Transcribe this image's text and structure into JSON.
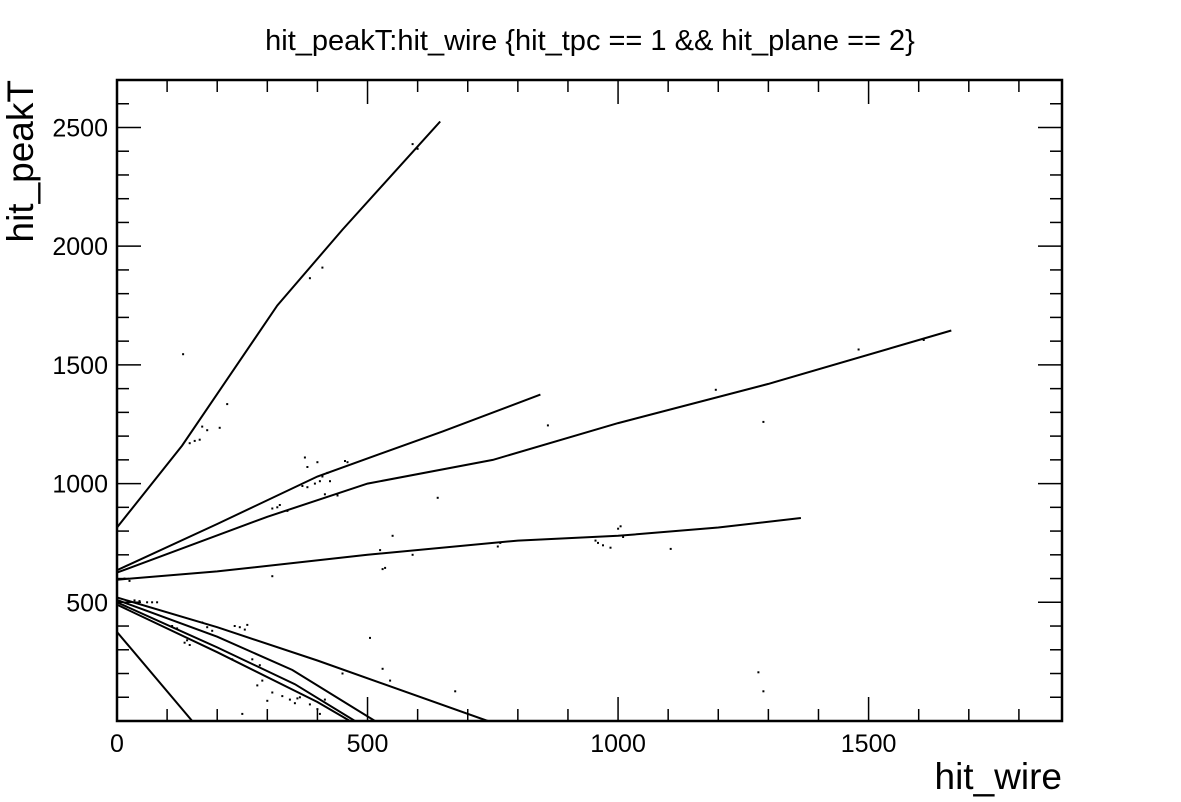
{
  "chart_data": {
    "type": "scatter",
    "title": "hit_peakT:hit_wire {hit_tpc == 1 && hit_plane == 2}",
    "xlabel": "hit_wire",
    "ylabel": "hit_peakT",
    "xlim": [
      0,
      1886
    ],
    "ylim": [
      0,
      2700
    ],
    "x_ticks": [
      0,
      500,
      1000,
      1500
    ],
    "x_tick_labels": [
      "0",
      "500",
      "1000",
      "1500"
    ],
    "y_ticks": [
      500,
      1000,
      1500,
      2000,
      2500
    ],
    "y_tick_labels": [
      "500",
      "1000",
      "1500",
      "2000",
      "2500"
    ],
    "x_minor_step": 100,
    "y_minor_step": 100,
    "grid": false,
    "legend": "none",
    "marker_color": "#000000",
    "series": [
      {
        "points": [
          [
            0,
            815
          ],
          [
            130,
            1160
          ],
          [
            320,
            1750
          ],
          [
            450,
            2070
          ],
          [
            645,
            2525
          ]
        ]
      },
      {
        "points": [
          [
            0,
            635
          ],
          [
            200,
            830
          ],
          [
            400,
            1030
          ],
          [
            650,
            1220
          ],
          [
            845,
            1375
          ]
        ]
      },
      {
        "points": [
          [
            0,
            625
          ],
          [
            300,
            860
          ],
          [
            500,
            1000
          ],
          [
            750,
            1100
          ],
          [
            1000,
            1255
          ],
          [
            1300,
            1420
          ],
          [
            1665,
            1645
          ]
        ]
      },
      {
        "points": [
          [
            0,
            595
          ],
          [
            200,
            630
          ],
          [
            500,
            700
          ],
          [
            800,
            760
          ],
          [
            1000,
            780
          ],
          [
            1200,
            815
          ],
          [
            1365,
            855
          ]
        ]
      },
      {
        "points": [
          [
            0,
            520
          ],
          [
            200,
            395
          ],
          [
            400,
            255
          ],
          [
            740,
            0
          ]
        ]
      },
      {
        "points": [
          [
            0,
            510
          ],
          [
            200,
            355
          ],
          [
            350,
            215
          ],
          [
            515,
            0
          ]
        ]
      },
      {
        "points": [
          [
            0,
            500
          ],
          [
            200,
            310
          ],
          [
            355,
            155
          ],
          [
            475,
            0
          ]
        ]
      },
      {
        "points": [
          [
            0,
            490
          ],
          [
            200,
            290
          ],
          [
            400,
            80
          ],
          [
            465,
            0
          ]
        ]
      },
      {
        "points": [
          [
            0,
            375
          ],
          [
            150,
            0
          ]
        ]
      }
    ],
    "scatter_points": [
      [
        132,
        1545
      ],
      [
        590,
        2430
      ],
      [
        600,
        2410
      ],
      [
        220,
        1335
      ],
      [
        385,
        1865
      ],
      [
        410,
        1910
      ],
      [
        170,
        1240
      ],
      [
        180,
        1225
      ],
      [
        205,
        1235
      ],
      [
        145,
        1170
      ],
      [
        155,
        1180
      ],
      [
        165,
        1185
      ],
      [
        375,
        1110
      ],
      [
        400,
        1090
      ],
      [
        380,
        1070
      ],
      [
        420,
        1045
      ],
      [
        410,
        1030
      ],
      [
        395,
        1000
      ],
      [
        405,
        1010
      ],
      [
        380,
        985
      ],
      [
        415,
        955
      ],
      [
        425,
        1010
      ],
      [
        455,
        1095
      ],
      [
        460,
        1090
      ],
      [
        370,
        990
      ],
      [
        440,
        950
      ],
      [
        320,
        900
      ],
      [
        325,
        910
      ],
      [
        310,
        895
      ],
      [
        340,
        885
      ],
      [
        640,
        940
      ],
      [
        860,
        1245
      ],
      [
        1195,
        1395
      ],
      [
        1290,
        1260
      ],
      [
        1480,
        1565
      ],
      [
        1610,
        1605
      ],
      [
        550,
        780
      ],
      [
        525,
        720
      ],
      [
        590,
        700
      ],
      [
        530,
        640
      ],
      [
        535,
        645
      ],
      [
        310,
        610
      ],
      [
        765,
        750
      ],
      [
        760,
        735
      ],
      [
        955,
        760
      ],
      [
        960,
        750
      ],
      [
        970,
        740
      ],
      [
        985,
        730
      ],
      [
        1000,
        810
      ],
      [
        1005,
        820
      ],
      [
        1010,
        775
      ],
      [
        1105,
        725
      ],
      [
        35,
        508
      ],
      [
        45,
        505
      ],
      [
        60,
        500
      ],
      [
        70,
        500
      ],
      [
        80,
        500
      ],
      [
        25,
        590
      ],
      [
        15,
        600
      ],
      [
        110,
        400
      ],
      [
        120,
        390
      ],
      [
        170,
        415
      ],
      [
        180,
        395
      ],
      [
        190,
        380
      ],
      [
        235,
        400
      ],
      [
        245,
        395
      ],
      [
        255,
        385
      ],
      [
        260,
        405
      ],
      [
        135,
        330
      ],
      [
        140,
        340
      ],
      [
        145,
        320
      ],
      [
        270,
        260
      ],
      [
        285,
        235
      ],
      [
        290,
        170
      ],
      [
        280,
        150
      ],
      [
        310,
        120
      ],
      [
        330,
        105
      ],
      [
        345,
        90
      ],
      [
        355,
        75
      ],
      [
        360,
        95
      ],
      [
        300,
        85
      ],
      [
        250,
        30
      ],
      [
        230,
        260
      ],
      [
        365,
        100
      ],
      [
        385,
        70
      ],
      [
        400,
        50
      ],
      [
        405,
        30
      ],
      [
        415,
        90
      ],
      [
        450,
        200
      ],
      [
        545,
        170
      ],
      [
        505,
        350
      ],
      [
        530,
        220
      ],
      [
        675,
        125
      ],
      [
        1280,
        205
      ],
      [
        1290,
        125
      ]
    ]
  }
}
